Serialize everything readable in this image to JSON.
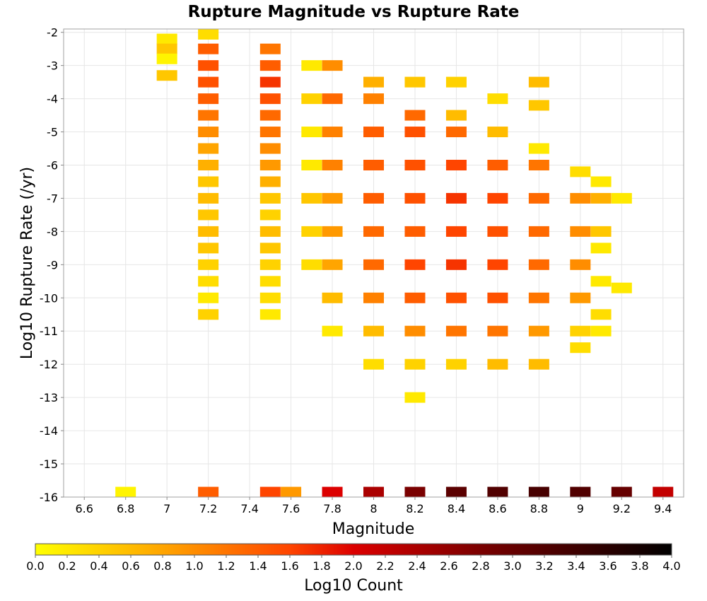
{
  "chart_data": {
    "type": "heatmap",
    "title": "Rupture Magnitude vs Rupture Rate",
    "xlabel": "Magnitude",
    "ylabel": "Log10 Rupture Rate (/yr)",
    "colorbar_label": "Log10 Count",
    "xlim": [
      6.5,
      9.5
    ],
    "ylim": [
      -16,
      -1.9
    ],
    "x_ticks": [
      "6.6",
      "6.8",
      "7",
      "7.2",
      "7.4",
      "7.6",
      "7.8",
      "8",
      "8.2",
      "8.4",
      "8.6",
      "8.8",
      "9",
      "9.2",
      "9.4"
    ],
    "y_ticks": [
      "-2",
      "-3",
      "-4",
      "-5",
      "-6",
      "-7",
      "-8",
      "-9",
      "-10",
      "-11",
      "-12",
      "-13",
      "-14",
      "-15",
      "-16"
    ],
    "colorbar_ticks": [
      "0.0",
      "0.2",
      "0.4",
      "0.6",
      "0.8",
      "1.0",
      "1.2",
      "1.4",
      "1.6",
      "1.8",
      "2.0",
      "2.2",
      "2.4",
      "2.6",
      "2.8",
      "3.0",
      "3.2",
      "3.4",
      "3.6",
      "3.8",
      "4.0"
    ],
    "color_range": [
      0.0,
      4.0
    ],
    "colors": [
      "#ffff00",
      "#ffa500",
      "#ff4500",
      "#dc0000",
      "#7a0000",
      "#000000"
    ],
    "grid": true,
    "cells": [
      {
        "x": 6.8,
        "y": -16,
        "v": 0.1
      },
      {
        "x": 7.2,
        "y": -16,
        "v": 1.4
      },
      {
        "x": 7.5,
        "y": -16,
        "v": 1.6
      },
      {
        "x": 7.6,
        "y": -16,
        "v": 0.9
      },
      {
        "x": 7.8,
        "y": -16,
        "v": 2.0
      },
      {
        "x": 8.0,
        "y": -16,
        "v": 2.4
      },
      {
        "x": 8.2,
        "y": -16,
        "v": 2.8
      },
      {
        "x": 8.4,
        "y": -16,
        "v": 3.1
      },
      {
        "x": 8.6,
        "y": -16,
        "v": 3.2
      },
      {
        "x": 8.8,
        "y": -16,
        "v": 3.3
      },
      {
        "x": 9.0,
        "y": -16,
        "v": 3.2
      },
      {
        "x": 9.2,
        "y": -16,
        "v": 3.0
      },
      {
        "x": 9.4,
        "y": -16,
        "v": 2.2
      },
      {
        "x": 7.0,
        "y": -2.2,
        "v": 0.2
      },
      {
        "x": 7.0,
        "y": -2.5,
        "v": 0.5
      },
      {
        "x": 7.0,
        "y": -2.8,
        "v": 0.1
      },
      {
        "x": 7.0,
        "y": -3.3,
        "v": 0.5
      },
      {
        "x": 7.2,
        "y": -2,
        "v": 0.3
      },
      {
        "x": 7.2,
        "y": -2.5,
        "v": 1.4
      },
      {
        "x": 7.2,
        "y": -3,
        "v": 1.5
      },
      {
        "x": 7.2,
        "y": -3.5,
        "v": 1.5
      },
      {
        "x": 7.2,
        "y": -4,
        "v": 1.4
      },
      {
        "x": 7.2,
        "y": -4.5,
        "v": 1.2
      },
      {
        "x": 7.2,
        "y": -5,
        "v": 1.0
      },
      {
        "x": 7.2,
        "y": -5.5,
        "v": 0.8
      },
      {
        "x": 7.2,
        "y": -6,
        "v": 0.7
      },
      {
        "x": 7.2,
        "y": -6.5,
        "v": 0.5
      },
      {
        "x": 7.2,
        "y": -7,
        "v": 0.6
      },
      {
        "x": 7.2,
        "y": -7.5,
        "v": 0.5
      },
      {
        "x": 7.2,
        "y": -8,
        "v": 0.6
      },
      {
        "x": 7.2,
        "y": -8.5,
        "v": 0.5
      },
      {
        "x": 7.2,
        "y": -9,
        "v": 0.4
      },
      {
        "x": 7.2,
        "y": -9.5,
        "v": 0.3
      },
      {
        "x": 7.2,
        "y": -10,
        "v": 0.2
      },
      {
        "x": 7.2,
        "y": -10.5,
        "v": 0.4
      },
      {
        "x": 7.5,
        "y": -2.5,
        "v": 1.2
      },
      {
        "x": 7.5,
        "y": -3,
        "v": 1.4
      },
      {
        "x": 7.5,
        "y": -3.5,
        "v": 1.7
      },
      {
        "x": 7.5,
        "y": -4,
        "v": 1.5
      },
      {
        "x": 7.5,
        "y": -4.5,
        "v": 1.3
      },
      {
        "x": 7.5,
        "y": -5,
        "v": 1.2
      },
      {
        "x": 7.5,
        "y": -5.5,
        "v": 1.0
      },
      {
        "x": 7.5,
        "y": -6,
        "v": 0.9
      },
      {
        "x": 7.5,
        "y": -6.5,
        "v": 0.7
      },
      {
        "x": 7.5,
        "y": -7,
        "v": 0.5
      },
      {
        "x": 7.5,
        "y": -7.5,
        "v": 0.4
      },
      {
        "x": 7.5,
        "y": -8,
        "v": 0.6
      },
      {
        "x": 7.5,
        "y": -8.5,
        "v": 0.5
      },
      {
        "x": 7.5,
        "y": -9,
        "v": 0.4
      },
      {
        "x": 7.5,
        "y": -9.5,
        "v": 0.3
      },
      {
        "x": 7.5,
        "y": -10,
        "v": 0.3
      },
      {
        "x": 7.5,
        "y": -10.5,
        "v": 0.2
      },
      {
        "x": 7.7,
        "y": -3,
        "v": 0.2
      },
      {
        "x": 7.7,
        "y": -4,
        "v": 0.4
      },
      {
        "x": 7.7,
        "y": -5,
        "v": 0.2
      },
      {
        "x": 7.7,
        "y": -6,
        "v": 0.2
      },
      {
        "x": 7.7,
        "y": -7,
        "v": 0.5
      },
      {
        "x": 7.7,
        "y": -8,
        "v": 0.4
      },
      {
        "x": 7.7,
        "y": -9,
        "v": 0.3
      },
      {
        "x": 7.8,
        "y": -3,
        "v": 1.0
      },
      {
        "x": 7.8,
        "y": -4,
        "v": 1.3
      },
      {
        "x": 7.8,
        "y": -5,
        "v": 1.1
      },
      {
        "x": 7.8,
        "y": -6,
        "v": 1.1
      },
      {
        "x": 7.8,
        "y": -7,
        "v": 0.9
      },
      {
        "x": 7.8,
        "y": -8,
        "v": 0.9
      },
      {
        "x": 7.8,
        "y": -9,
        "v": 0.8
      },
      {
        "x": 7.8,
        "y": -10,
        "v": 0.6
      },
      {
        "x": 7.8,
        "y": -11,
        "v": 0.2
      },
      {
        "x": 8.0,
        "y": -3.5,
        "v": 0.7
      },
      {
        "x": 8.0,
        "y": -4,
        "v": 1.1
      },
      {
        "x": 8.0,
        "y": -5,
        "v": 1.4
      },
      {
        "x": 8.0,
        "y": -6,
        "v": 1.4
      },
      {
        "x": 8.0,
        "y": -7,
        "v": 1.4
      },
      {
        "x": 8.0,
        "y": -8,
        "v": 1.3
      },
      {
        "x": 8.0,
        "y": -9,
        "v": 1.3
      },
      {
        "x": 8.0,
        "y": -10,
        "v": 1.1
      },
      {
        "x": 8.0,
        "y": -11,
        "v": 0.6
      },
      {
        "x": 8.0,
        "y": -12,
        "v": 0.3
      },
      {
        "x": 8.2,
        "y": -3.5,
        "v": 0.5
      },
      {
        "x": 8.2,
        "y": -4.5,
        "v": 1.3
      },
      {
        "x": 8.2,
        "y": -5,
        "v": 1.5
      },
      {
        "x": 8.2,
        "y": -6,
        "v": 1.5
      },
      {
        "x": 8.2,
        "y": -7,
        "v": 1.5
      },
      {
        "x": 8.2,
        "y": -8,
        "v": 1.4
      },
      {
        "x": 8.2,
        "y": -9,
        "v": 1.6
      },
      {
        "x": 8.2,
        "y": -10,
        "v": 1.4
      },
      {
        "x": 8.2,
        "y": -11,
        "v": 1.0
      },
      {
        "x": 8.2,
        "y": -12,
        "v": 0.4
      },
      {
        "x": 8.2,
        "y": -13,
        "v": 0.2
      },
      {
        "x": 8.4,
        "y": -3.5,
        "v": 0.4
      },
      {
        "x": 8.4,
        "y": -4.5,
        "v": 0.6
      },
      {
        "x": 8.4,
        "y": -5,
        "v": 1.3
      },
      {
        "x": 8.4,
        "y": -6,
        "v": 1.6
      },
      {
        "x": 8.4,
        "y": -7,
        "v": 1.7
      },
      {
        "x": 8.4,
        "y": -8,
        "v": 1.6
      },
      {
        "x": 8.4,
        "y": -9,
        "v": 1.7
      },
      {
        "x": 8.4,
        "y": -10,
        "v": 1.5
      },
      {
        "x": 8.4,
        "y": -11,
        "v": 1.2
      },
      {
        "x": 8.4,
        "y": -12,
        "v": 0.4
      },
      {
        "x": 8.6,
        "y": -4,
        "v": 0.3
      },
      {
        "x": 8.6,
        "y": -5,
        "v": 0.6
      },
      {
        "x": 8.6,
        "y": -6,
        "v": 1.4
      },
      {
        "x": 8.6,
        "y": -7,
        "v": 1.6
      },
      {
        "x": 8.6,
        "y": -8,
        "v": 1.5
      },
      {
        "x": 8.6,
        "y": -9,
        "v": 1.6
      },
      {
        "x": 8.6,
        "y": -10,
        "v": 1.5
      },
      {
        "x": 8.6,
        "y": -11,
        "v": 1.2
      },
      {
        "x": 8.6,
        "y": -12,
        "v": 0.6
      },
      {
        "x": 8.8,
        "y": -3.5,
        "v": 0.6
      },
      {
        "x": 8.8,
        "y": -4.2,
        "v": 0.5
      },
      {
        "x": 8.8,
        "y": -5.5,
        "v": 0.2
      },
      {
        "x": 8.8,
        "y": -6,
        "v": 1.2
      },
      {
        "x": 8.8,
        "y": -7,
        "v": 1.3
      },
      {
        "x": 8.8,
        "y": -8,
        "v": 1.3
      },
      {
        "x": 8.8,
        "y": -9,
        "v": 1.3
      },
      {
        "x": 8.8,
        "y": -10,
        "v": 1.2
      },
      {
        "x": 8.8,
        "y": -11,
        "v": 0.9
      },
      {
        "x": 8.8,
        "y": -12,
        "v": 0.6
      },
      {
        "x": 9.0,
        "y": -6.2,
        "v": 0.3
      },
      {
        "x": 9.0,
        "y": -7,
        "v": 1.0
      },
      {
        "x": 9.0,
        "y": -8,
        "v": 1.0
      },
      {
        "x": 9.0,
        "y": -9,
        "v": 1.0
      },
      {
        "x": 9.0,
        "y": -10,
        "v": 0.9
      },
      {
        "x": 9.0,
        "y": -11,
        "v": 0.4
      },
      {
        "x": 9.0,
        "y": -11.5,
        "v": 0.3
      },
      {
        "x": 9.1,
        "y": -6.5,
        "v": 0.2
      },
      {
        "x": 9.1,
        "y": -7,
        "v": 0.7
      },
      {
        "x": 9.1,
        "y": -8,
        "v": 0.5
      },
      {
        "x": 9.1,
        "y": -8.5,
        "v": 0.2
      },
      {
        "x": 9.1,
        "y": -9.5,
        "v": 0.2
      },
      {
        "x": 9.1,
        "y": -10.5,
        "v": 0.3
      },
      {
        "x": 9.1,
        "y": -11,
        "v": 0.2
      },
      {
        "x": 9.2,
        "y": -7,
        "v": 0.2
      },
      {
        "x": 9.2,
        "y": -9.7,
        "v": 0.2
      }
    ]
  }
}
